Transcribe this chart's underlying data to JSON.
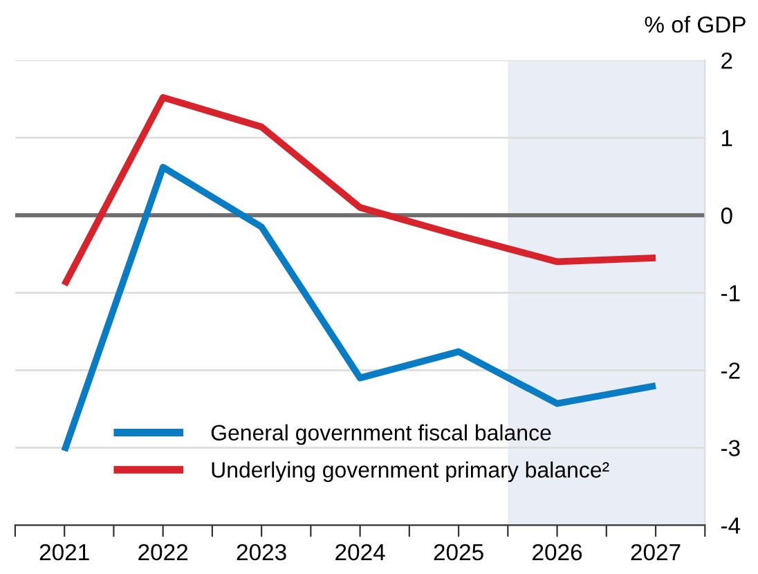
{
  "chart_data": {
    "type": "line",
    "ylabel": "% of GDP",
    "x": [
      2021,
      2022,
      2023,
      2024,
      2025,
      2026,
      2027
    ],
    "series": [
      {
        "name": "General government fiscal balance",
        "color": "#0a7cc4",
        "values": [
          -3.04,
          0.62,
          -0.15,
          -2.1,
          -1.76,
          -2.43,
          -2.2
        ]
      },
      {
        "name": "Underlying government primary balance²",
        "color": "#d7242c",
        "values": [
          -0.9,
          1.52,
          1.14,
          0.1,
          -0.26,
          -0.6,
          -0.55
        ]
      }
    ],
    "xlim": [
      2020.5,
      2027.5
    ],
    "xticks": [
      {
        "value": 2020.5,
        "label": null
      },
      2021,
      {
        "value": 2021.5,
        "label": null
      },
      2022,
      {
        "value": 2022.5,
        "label": null
      },
      2023,
      {
        "value": 2023.5,
        "label": null
      },
      2024,
      {
        "value": 2024.5,
        "label": null
      },
      2025,
      {
        "value": 2025.5,
        "label": null
      },
      2026,
      {
        "value": 2026.5,
        "label": null
      },
      2027,
      {
        "value": 2027.5,
        "label": null
      }
    ],
    "ylim": [
      -4,
      2
    ],
    "yticks": [
      -4,
      -3,
      -2,
      -1,
      0,
      1,
      2
    ],
    "ref_lines": [
      {
        "axis": "y",
        "value": 0,
        "color": "#6e6e6e"
      }
    ],
    "bands": [
      {
        "axis": "x",
        "from": 2025.5,
        "to": 2027.5,
        "color": "#e9edf5"
      }
    ],
    "grid": "y",
    "legend": "bottom",
    "marker": "none",
    "line_style": "solid"
  }
}
